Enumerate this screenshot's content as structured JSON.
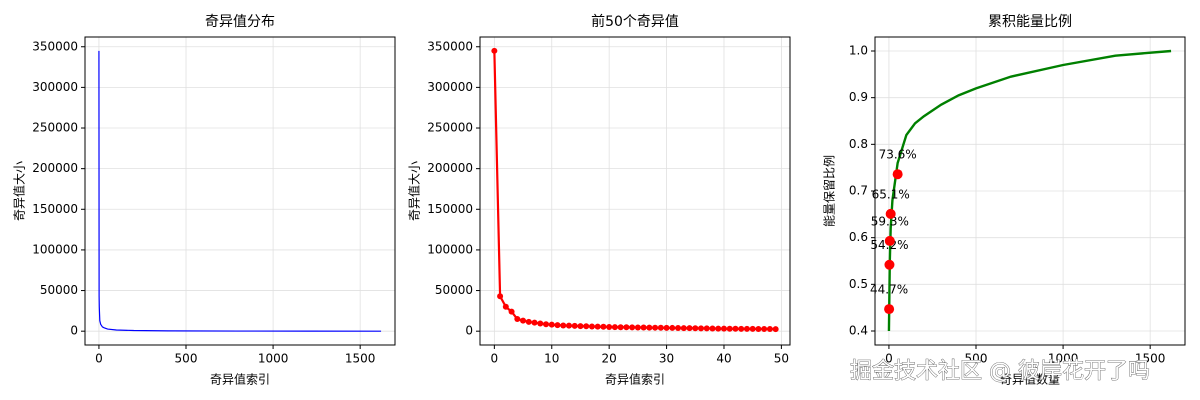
{
  "chart_data": [
    {
      "type": "line",
      "title": "奇异值分布",
      "xlabel": "奇异值索引",
      "ylabel": "奇异值大小",
      "x": [
        0,
        1,
        2,
        3,
        5,
        10,
        20,
        30,
        50,
        100,
        200,
        400,
        800,
        1200,
        1620
      ],
      "series": [
        {
          "color": "#0000ff",
          "line_width": 1.2,
          "values": [
            345000,
            43000,
            30000,
            24000,
            13000,
            8500,
            5200,
            4200,
            2600,
            1500,
            800,
            400,
            150,
            60,
            10
          ]
        }
      ],
      "xlim": [
        -80,
        1700
      ],
      "xticks": [
        0,
        500,
        1000,
        1500
      ],
      "ylim": [
        -17000,
        362000
      ],
      "yticks": [
        0,
        50000,
        100000,
        150000,
        200000,
        250000,
        300000,
        350000
      ],
      "grid": true
    },
    {
      "type": "line",
      "title": "前50个奇异值",
      "xlabel": "奇异值索引",
      "ylabel": "奇异值大小",
      "x": [
        0,
        1,
        2,
        3,
        4,
        5,
        6,
        7,
        8,
        9,
        10,
        11,
        12,
        13,
        14,
        15,
        16,
        17,
        18,
        19,
        20,
        21,
        22,
        23,
        24,
        25,
        26,
        27,
        28,
        29,
        30,
        31,
        32,
        33,
        34,
        35,
        36,
        37,
        38,
        39,
        40,
        41,
        42,
        43,
        44,
        45,
        46,
        47,
        48,
        49
      ],
      "series": [
        {
          "color": "#ff0000",
          "line_width": 2.2,
          "markers": true,
          "values": [
            345000,
            43000,
            30000,
            24000,
            15000,
            13000,
            11500,
            10500,
            9500,
            8500,
            8000,
            7500,
            7000,
            6800,
            6500,
            6200,
            6000,
            5800,
            5600,
            5400,
            5200,
            5000,
            4900,
            4800,
            4700,
            4600,
            4500,
            4400,
            4300,
            4200,
            4100,
            4000,
            3900,
            3800,
            3700,
            3600,
            3500,
            3400,
            3300,
            3200,
            3100,
            3000,
            2950,
            2900,
            2850,
            2800,
            2750,
            2700,
            2650,
            2600
          ]
        }
      ],
      "xlim": [
        -2.5,
        51.5
      ],
      "xticks": [
        0,
        10,
        20,
        30,
        40,
        50
      ],
      "ylim": [
        -17000,
        362000
      ],
      "yticks": [
        0,
        50000,
        100000,
        150000,
        200000,
        250000,
        300000,
        350000
      ],
      "grid": true
    },
    {
      "type": "line",
      "title": "累积能量比例",
      "xlabel": "奇异值数量",
      "ylabel": "能量保留比例",
      "series": [
        {
          "type": "line",
          "color": "#008000",
          "line_width": 2.4,
          "x": [
            0,
            5,
            10,
            20,
            50,
            100,
            150,
            200,
            300,
            400,
            500,
            700,
            1000,
            1300,
            1620
          ],
          "values": [
            0.4,
            0.55,
            0.62,
            0.68,
            0.76,
            0.82,
            0.845,
            0.86,
            0.885,
            0.905,
            0.92,
            0.945,
            0.97,
            0.99,
            1.0
          ]
        },
        {
          "type": "scatter",
          "color": "#ff0000",
          "x": [
            1,
            3,
            5,
            10,
            50
          ],
          "values": [
            0.447,
            0.542,
            0.593,
            0.651,
            0.736
          ],
          "value_labels": [
            "44.7%",
            "54.2%",
            "59.3%",
            "65.1%",
            "73.6%"
          ]
        }
      ],
      "xlim": [
        -80,
        1700
      ],
      "xticks": [
        0,
        500,
        1000,
        1500
      ],
      "ylim": [
        0.37,
        1.03
      ],
      "yticks": [
        0.4,
        0.5,
        0.6,
        0.7,
        0.8,
        0.9,
        {
          "value": 1,
          "label": "1.0"
        }
      ],
      "grid": true
    }
  ],
  "watermark": "掘金技术社区 @ 彼岸花开了吗"
}
